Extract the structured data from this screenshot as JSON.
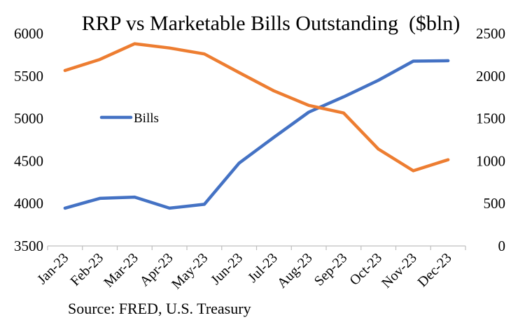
{
  "chart_data": {
    "type": "line",
    "title": "RRP vs Marketable Bills Outstanding  ($bln)",
    "source": "Source: FRED, U.S. Treasury",
    "categories": [
      "Jan-23",
      "Feb-23",
      "Mar-23",
      "Apr-23",
      "May-23",
      "Jun-23",
      "Jul-23",
      "Aug-23",
      "Sep-23",
      "Oct-23",
      "Nov-23",
      "Dec-23"
    ],
    "left_axis": {
      "ylim": [
        3500,
        6000
      ],
      "ticks": [
        3500,
        4000,
        4500,
        5000,
        5500,
        6000
      ]
    },
    "right_axis": {
      "ylim": [
        0,
        2500
      ],
      "ticks": [
        0,
        500,
        1000,
        1500,
        2000,
        2500
      ]
    },
    "grid": false,
    "legend": {
      "position": "center-left",
      "entries": [
        "Bills"
      ]
    },
    "series": [
      {
        "name": "Bills",
        "axis": "left",
        "color": "#4472C4",
        "values": [
          3945,
          4060,
          4075,
          3945,
          3990,
          4475,
          4780,
          5075,
          5255,
          5450,
          5675,
          5680
        ]
      },
      {
        "axis": "right",
        "color": "#ED7D31",
        "values": [
          2065,
          2195,
          2380,
          2330,
          2260,
          2040,
          1825,
          1655,
          1565,
          1140,
          885,
          1015
        ]
      }
    ]
  }
}
